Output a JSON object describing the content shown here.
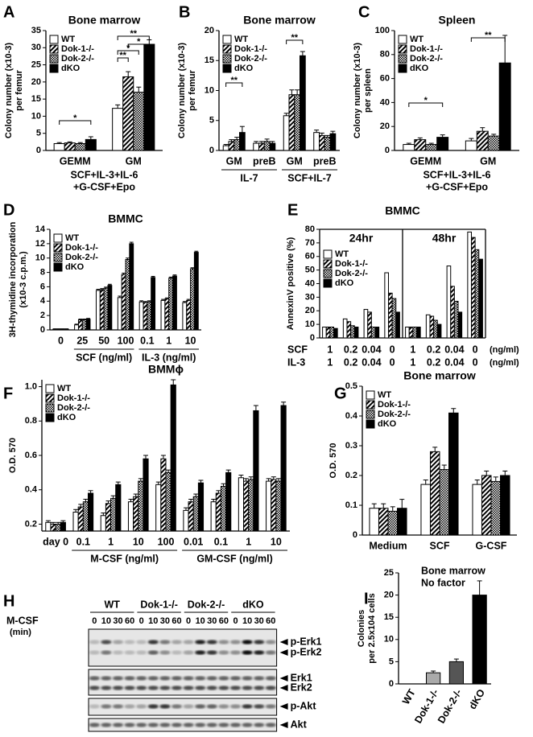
{
  "chart_data": [
    {
      "type": "bar",
      "panel": "A",
      "title": "Bone marrow",
      "ylabel": [
        "Colony number (x10-3)",
        "per femur"
      ],
      "categories": [
        "GEMM",
        "GM"
      ],
      "xlabel": [
        "SCF+IL-3+IL-6",
        "+G-CSF+Epo"
      ],
      "ylim": [
        0,
        35
      ],
      "yticks": [
        0,
        5,
        10,
        15,
        20,
        25,
        30,
        35
      ],
      "legend": "upper left",
      "annotations": [
        "*",
        "**",
        "*",
        "*",
        "**"
      ],
      "series": [
        {
          "name": "WT",
          "color": "#ffffff",
          "pattern": "none",
          "values": [
            2,
            12.3
          ],
          "errors": [
            0.3,
            1
          ]
        },
        {
          "name": "Dok-1-/-",
          "color": "#000000",
          "pattern": "diagonal",
          "values": [
            2.2,
            21.5
          ],
          "errors": [
            0.3,
            1.5
          ]
        },
        {
          "name": "Dok-2-/-",
          "color": "#000000",
          "pattern": "checker",
          "values": [
            2,
            17
          ],
          "errors": [
            0.3,
            1.5
          ]
        },
        {
          "name": "dKO",
          "color": "#000000",
          "pattern": "none",
          "values": [
            3.2,
            31
          ],
          "errors": [
            0.8,
            1.3
          ]
        }
      ]
    },
    {
      "type": "bar",
      "panel": "B",
      "title": "Bone marrow",
      "ylabel": [
        "Colony number (x10-3)",
        "per femur"
      ],
      "groups": [
        {
          "label": "IL-7",
          "categories": [
            "GM",
            "preB"
          ]
        },
        {
          "label": "SCF+IL-7",
          "categories": [
            "GM",
            "preB"
          ]
        }
      ],
      "ylim": [
        0,
        20
      ],
      "yticks": [
        0,
        5,
        10,
        15,
        20
      ],
      "legend": "upper left",
      "annotations": [
        "**",
        "**"
      ],
      "series": [
        {
          "name": "WT",
          "color": "#ffffff",
          "pattern": "none",
          "values": [
            0.8,
            1.2,
            5.8,
            3
          ],
          "errors": [
            0.2,
            0.3,
            0.4,
            0.4
          ]
        },
        {
          "name": "Dok-1-/-",
          "color": "#000000",
          "pattern": "diagonal",
          "values": [
            1.5,
            1.2,
            9.3,
            2.5
          ],
          "errors": [
            0.3,
            0.3,
            0.8,
            0.4
          ]
        },
        {
          "name": "Dok-2-/-",
          "color": "#000000",
          "pattern": "checker",
          "values": [
            1.8,
            1.5,
            9.3,
            2.2
          ],
          "errors": [
            0.4,
            0.4,
            0.8,
            0.3
          ]
        },
        {
          "name": "dKO",
          "color": "#000000",
          "pattern": "none",
          "values": [
            3,
            1.2,
            15.8,
            2.8
          ],
          "errors": [
            1,
            0.3,
            0.7,
            0.4
          ]
        }
      ]
    },
    {
      "type": "bar",
      "panel": "C",
      "title": "Spleen",
      "ylabel": [
        "Colony number (x10-3)",
        "per spleen"
      ],
      "categories": [
        "GEMM",
        "GM"
      ],
      "xlabel": [
        "SCF+IL-3+IL-6",
        "+G-CSF+Epo"
      ],
      "ylim": [
        0,
        100
      ],
      "yticks": [
        0,
        20,
        40,
        60,
        80,
        100
      ],
      "legend": "upper left",
      "annotations": [
        "*",
        "**"
      ],
      "series": [
        {
          "name": "WT",
          "color": "#ffffff",
          "pattern": "none",
          "values": [
            5,
            8
          ],
          "errors": [
            1,
            2
          ]
        },
        {
          "name": "Dok-1-/-",
          "color": "#000000",
          "pattern": "diagonal",
          "values": [
            9,
            16
          ],
          "errors": [
            1.5,
            3
          ]
        },
        {
          "name": "Dok-2-/-",
          "color": "#000000",
          "pattern": "checker",
          "values": [
            5,
            12
          ],
          "errors": [
            1,
            1.5
          ]
        },
        {
          "name": "dKO",
          "color": "#000000",
          "pattern": "none",
          "values": [
            11,
            73
          ],
          "errors": [
            2,
            23
          ]
        }
      ]
    },
    {
      "type": "bar",
      "panel": "D",
      "title": "BMMC",
      "ylabel": [
        "3H-thymidine incorporation",
        "(x10-3 c.p.m.)"
      ],
      "groups": [
        {
          "categories": [
            0
          ]
        },
        {
          "label": "SCF (ng/ml)",
          "categories": [
            25,
            50,
            100
          ]
        },
        {
          "label": "IL-3 (ng/ml)",
          "categories": [
            0.1,
            1,
            10
          ]
        }
      ],
      "ylim": [
        0,
        14
      ],
      "yticks": [
        0,
        2,
        4,
        6,
        8,
        10,
        12,
        14
      ],
      "legend": "upper left",
      "series": [
        {
          "name": "WT",
          "color": "#ffffff",
          "pattern": "none",
          "values": [
            0.1,
            0.7,
            5.5,
            4.5,
            3.9,
            4.1,
            3.8
          ],
          "errors": [
            0.05,
            0.1,
            0.15,
            0.2,
            0.15,
            0.15,
            0.15
          ]
        },
        {
          "name": "Dok-1-/-",
          "color": "#000000",
          "pattern": "diagonal",
          "values": [
            0.1,
            1.4,
            5.6,
            7.7,
            3.8,
            4.3,
            4.1
          ],
          "errors": [
            0.05,
            0.1,
            0.15,
            0.2,
            0.15,
            0.15,
            0.15
          ]
        },
        {
          "name": "Dok-2-/-",
          "color": "#000000",
          "pattern": "checker",
          "values": [
            0.1,
            1.4,
            5.8,
            9.8,
            3.9,
            7.2,
            8.5
          ],
          "errors": [
            0.05,
            0.1,
            0.15,
            0.2,
            0.15,
            0.15,
            0.15
          ]
        },
        {
          "name": "dKO",
          "color": "#000000",
          "pattern": "none",
          "values": [
            0.1,
            1.5,
            6.2,
            12,
            7.3,
            7.5,
            10.8
          ],
          "errors": [
            0.05,
            0.1,
            0.15,
            0.2,
            0.15,
            0.15,
            0.15
          ]
        }
      ]
    },
    {
      "type": "bar",
      "panel": "E",
      "title": "BMMC",
      "ylabel": [
        "AnnexinV positive (%)"
      ],
      "groups": [
        {
          "label": "24hr"
        },
        {
          "label": "48hr"
        }
      ],
      "rows": [
        {
          "label": "SCF",
          "values": [
            1,
            0.2,
            0.04,
            0,
            1,
            0.2,
            0.04,
            0
          ]
        },
        {
          "label": "IL-3",
          "values": [
            1,
            0.2,
            0.04,
            0,
            1,
            0.2,
            0.04,
            0
          ]
        }
      ],
      "row_unit": "(ng/ml)",
      "ylim": [
        0,
        80
      ],
      "yticks": [
        0,
        10,
        20,
        30,
        40,
        50,
        60,
        70,
        80
      ],
      "legend": "upper left",
      "series": [
        {
          "name": "WT",
          "color": "#ffffff",
          "pattern": "none",
          "values": [
            8,
            14,
            21,
            48,
            8,
            17,
            53,
            78
          ]
        },
        {
          "name": "Dok-1-/-",
          "color": "#000000",
          "pattern": "diagonal",
          "values": [
            8,
            12,
            19,
            33,
            8,
            16,
            38,
            74
          ]
        },
        {
          "name": "Dok-2-/-",
          "color": "#000000",
          "pattern": "checker",
          "values": [
            8,
            9,
            8,
            29,
            8,
            13,
            27,
            65
          ]
        },
        {
          "name": "dKO",
          "color": "#000000",
          "pattern": "none",
          "values": [
            7,
            8,
            8,
            19,
            8,
            10,
            19,
            58
          ]
        }
      ]
    },
    {
      "type": "bar",
      "panel": "F",
      "title": "BMMϕ",
      "ylabel": [
        "O.D. 570"
      ],
      "groups": [
        {
          "categories": [
            "day 0"
          ]
        },
        {
          "label": "M-CSF (ng/ml)",
          "categories": [
            0.1,
            1,
            10,
            100
          ]
        },
        {
          "label": "GM-CSF (ng/ml)",
          "categories": [
            0.01,
            0.1,
            1,
            10
          ]
        }
      ],
      "ylim": [
        0.16,
        1.04
      ],
      "yticks": [
        0.2,
        0.4,
        0.6,
        0.8,
        {
          "value": 1,
          "label": "1.0"
        }
      ],
      "legend": "upper left",
      "series": [
        {
          "name": "WT",
          "color": "#ffffff",
          "pattern": "none",
          "values": [
            0.21,
            0.27,
            0.25,
            0.33,
            0.43,
            0.28,
            0.33,
            0.47,
            0.45
          ],
          "errors": [
            0.01,
            0.015,
            0.015,
            0.015,
            0.015,
            0.015,
            0.015,
            0.015,
            0.015
          ]
        },
        {
          "name": "Dok-1-/-",
          "color": "#000000",
          "pattern": "diagonal",
          "values": [
            0.2,
            0.3,
            0.32,
            0.36,
            0.58,
            0.33,
            0.38,
            0.45,
            0.46
          ],
          "errors": [
            0.01,
            0.015,
            0.015,
            0.015,
            0.02,
            0.015,
            0.015,
            0.015,
            0.015
          ]
        },
        {
          "name": "Dok-2-/-",
          "color": "#000000",
          "pattern": "checker",
          "values": [
            0.2,
            0.33,
            0.35,
            0.45,
            0.5,
            0.36,
            0.42,
            0.46,
            0.45
          ],
          "errors": [
            0.01,
            0.015,
            0.015,
            0.015,
            0.015,
            0.015,
            0.015,
            0.015,
            0.015
          ]
        },
        {
          "name": "dKO",
          "color": "#000000",
          "pattern": "none",
          "values": [
            0.21,
            0.38,
            0.43,
            0.58,
            1.01,
            0.44,
            0.5,
            0.86,
            0.89
          ],
          "errors": [
            0.01,
            0.015,
            0.015,
            0.02,
            0.03,
            0.015,
            0.015,
            0.03,
            0.02
          ]
        }
      ]
    },
    {
      "type": "bar",
      "panel": "G",
      "title": "Bone marrow",
      "ylabel": [
        "O.D. 570"
      ],
      "categories": [
        "Medium",
        "SCF",
        "G-CSF"
      ],
      "ylim": [
        0,
        0.5
      ],
      "yticks": [
        0,
        0.1,
        0.2,
        0.3,
        0.4,
        0.5
      ],
      "legend": "upper left",
      "series": [
        {
          "name": "WT",
          "color": "#ffffff",
          "pattern": "none",
          "values": [
            0.09,
            0.17,
            0.17
          ],
          "errors": [
            0.015,
            0.015,
            0.015
          ]
        },
        {
          "name": "Dok-1-/-",
          "color": "#000000",
          "pattern": "diagonal",
          "values": [
            0.09,
            0.28,
            0.2
          ],
          "errors": [
            0.015,
            0.015,
            0.015
          ]
        },
        {
          "name": "Dok-2-/-",
          "color": "#000000",
          "pattern": "checker",
          "values": [
            0.08,
            0.22,
            0.18
          ],
          "errors": [
            0.015,
            0.015,
            0.015
          ]
        },
        {
          "name": "dKO",
          "color": "#000000",
          "pattern": "none",
          "values": [
            0.09,
            0.41,
            0.2
          ],
          "errors": [
            0.03,
            0.015,
            0.015
          ]
        }
      ]
    },
    {
      "type": "bar",
      "panel": "I",
      "ylabel": [
        "Colonies",
        "per 2.5x104 cells"
      ],
      "annotation": [
        "Bone marrow",
        "No factor"
      ],
      "categories": [
        "WT",
        "Dok-1-/-",
        "Dok-2-/-",
        "dKO"
      ],
      "ylim": [
        0,
        25
      ],
      "yticks": [
        0,
        5,
        10,
        15,
        20,
        25
      ],
      "series": [
        {
          "colors": [
            "#ffffff",
            "#aaaaaa",
            "#555555",
            "#000000"
          ],
          "values": [
            0,
            2.5,
            5,
            20
          ],
          "errors": [
            0,
            0.4,
            0.6,
            3.2
          ]
        }
      ]
    }
  ],
  "blot": {
    "panel": "H",
    "treatment": "M-CSF",
    "unit": "(min)",
    "groups": [
      {
        "label": "WT",
        "times": [
          0,
          10,
          30,
          60
        ]
      },
      {
        "label": "Dok-1-/-",
        "times": [
          0,
          10,
          30,
          60
        ]
      },
      {
        "label": "Dok-2-/-",
        "times": [
          0,
          10,
          30,
          60
        ]
      },
      {
        "label": "dKO",
        "times": [
          0,
          10,
          30,
          60
        ]
      }
    ],
    "bands": [
      "p-Erk1",
      "p-Erk2",
      "Erk1",
      "Erk2",
      "p-Akt",
      "Akt"
    ]
  }
}
